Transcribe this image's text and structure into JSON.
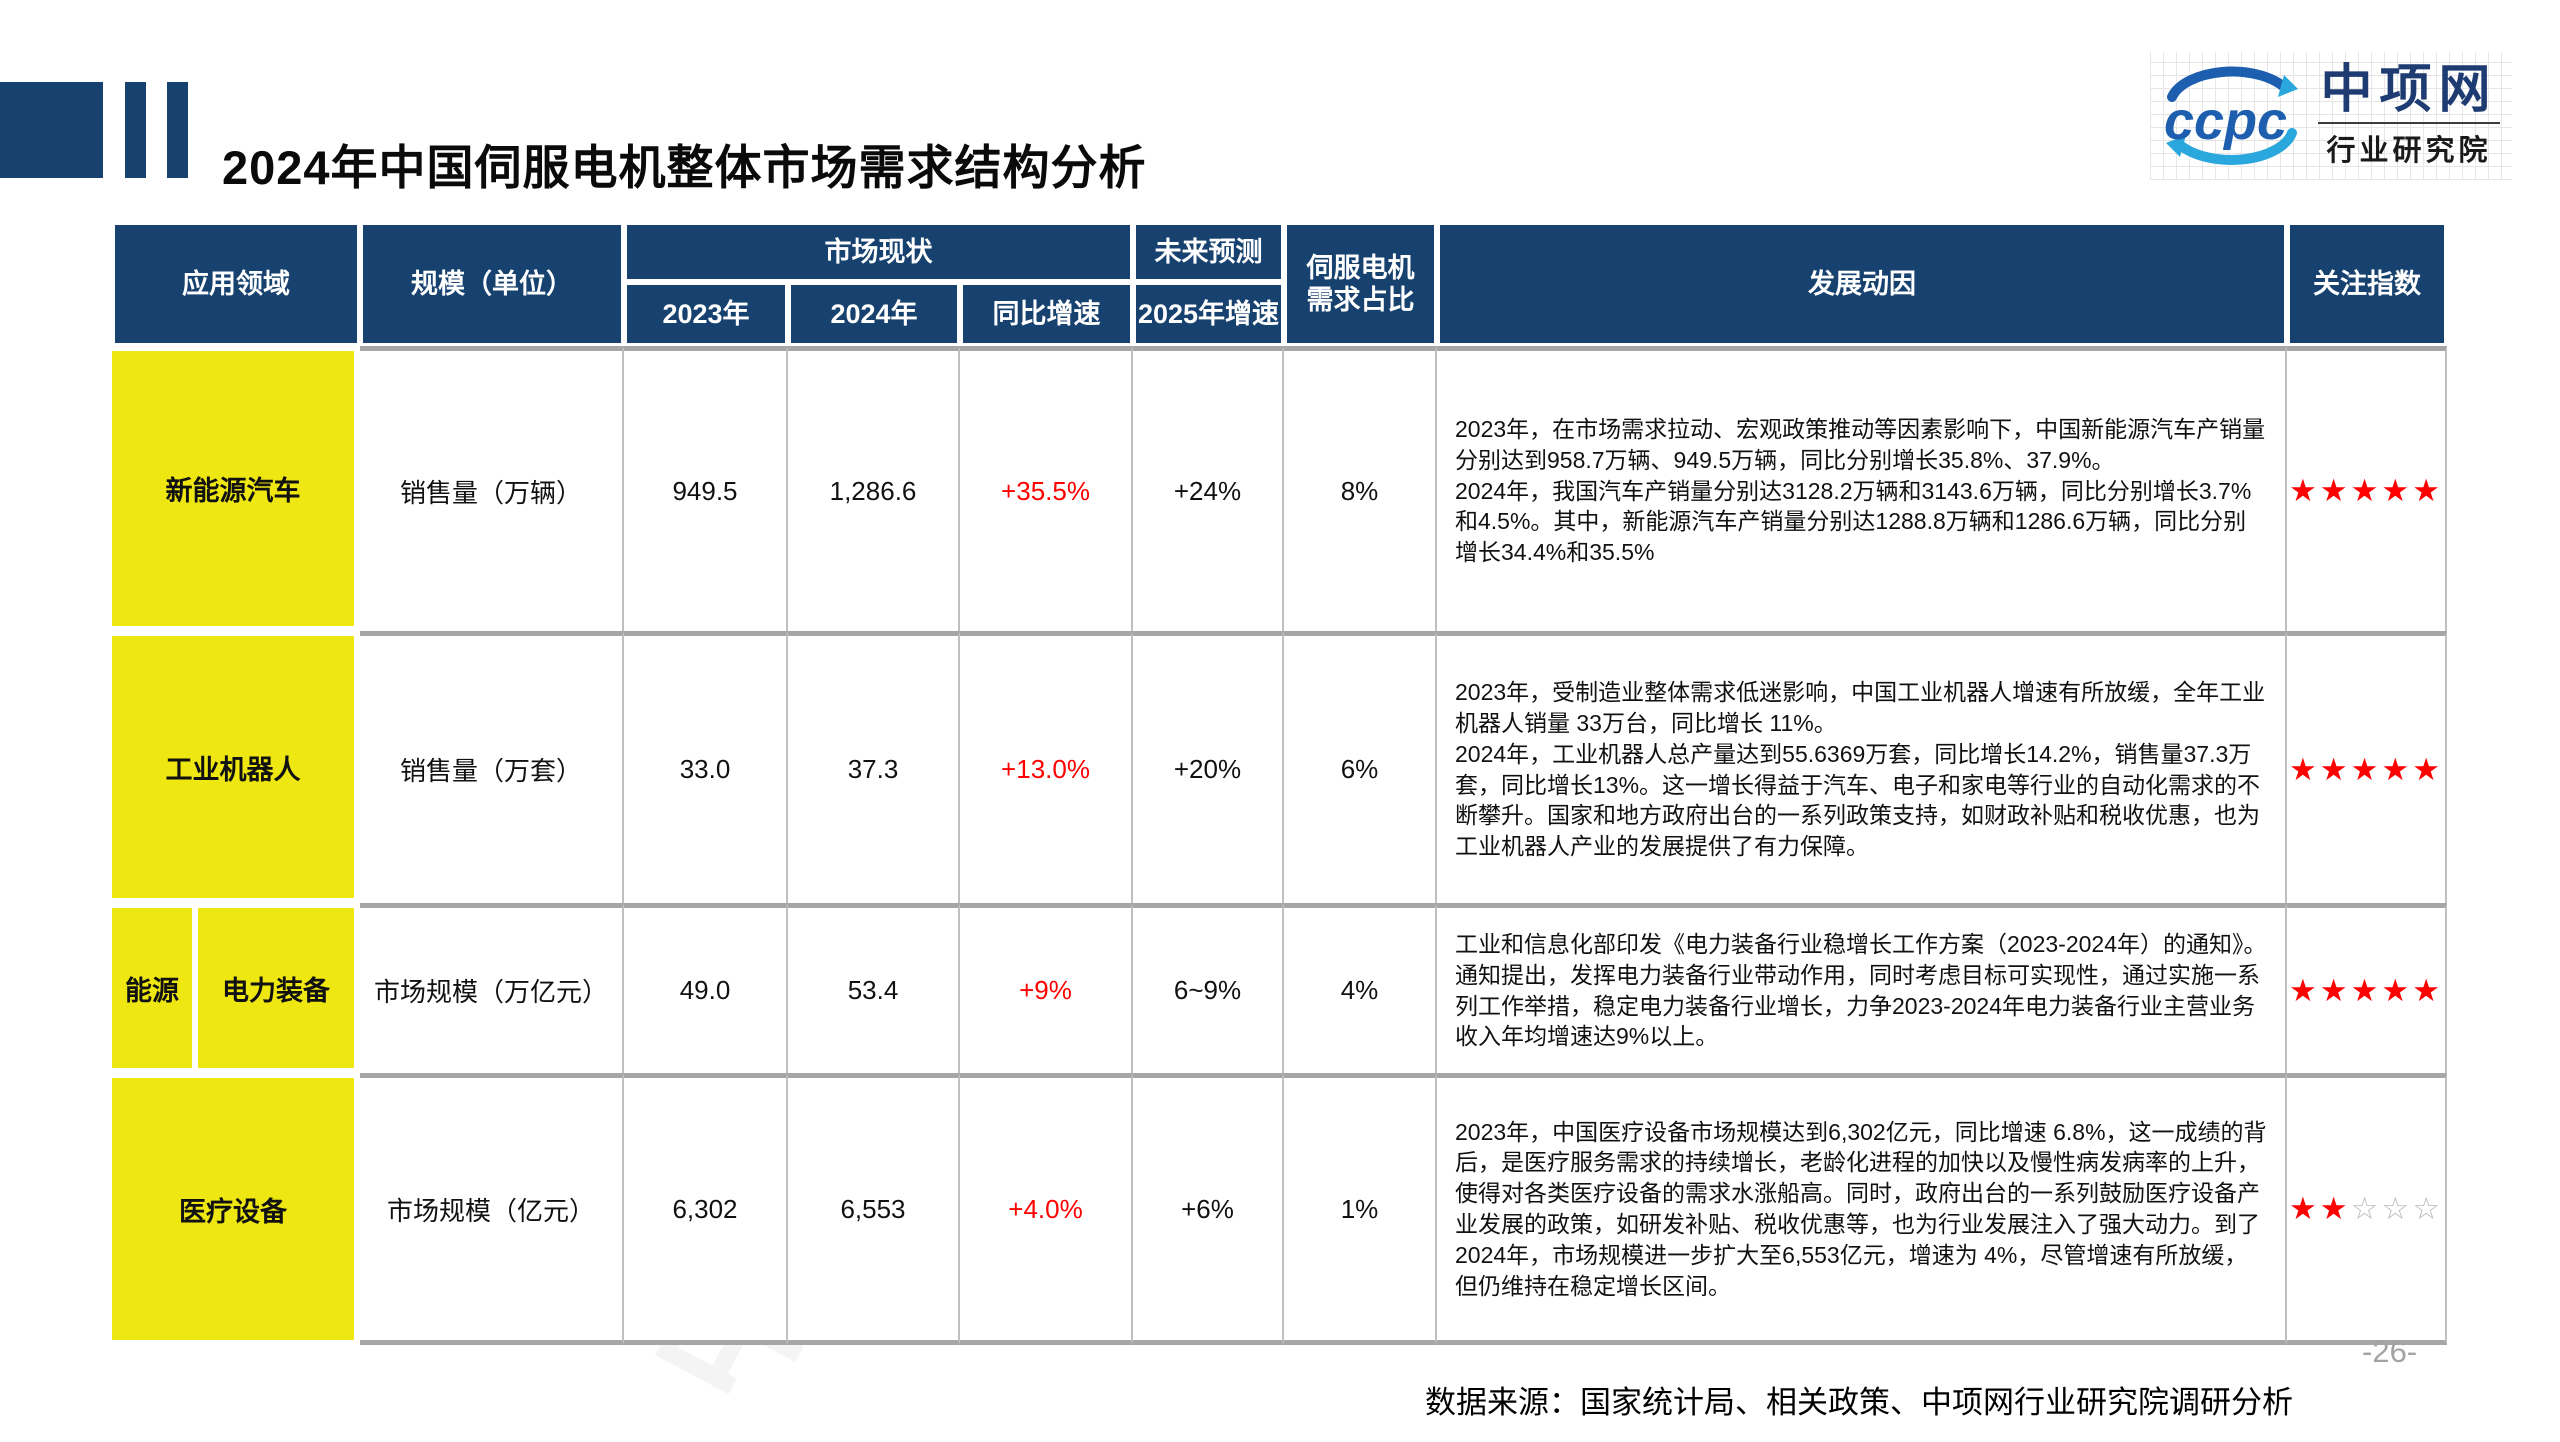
{
  "page": {
    "title": "2024年中国伺服电机整体市场需求结构分析",
    "page_number": "-26-",
    "source_note": "数据来源：国家统计局、相关政策、中项网行业研究院调研分析",
    "watermark": "中项网行研院"
  },
  "logo": {
    "acronym": "ccpc",
    "name": "中项网",
    "subtitle": "行业研究院"
  },
  "colors": {
    "navy": "#17426F",
    "yellow": "#EFE711",
    "red": "#FF0000",
    "row_line": "#A6A6A6",
    "col_line": "#C0C0C0",
    "star_empty": "#BBBBBB",
    "logo_blue": "#1D5FAE",
    "logo_lightblue": "#2AA7DD"
  },
  "table": {
    "headers": {
      "application": "应用领域",
      "scale": "规模（单位）",
      "market_status": "市场现状",
      "y2023": "2023年",
      "y2024": "2024年",
      "yoy": "同比增速",
      "forecast": "未来预测",
      "growth2025": "2025年增速",
      "servo_share": "伺服电机需求占比",
      "driver": "发展动因",
      "attention": "关注指数"
    },
    "rows": [
      {
        "category": "新能源汽车",
        "scale": "销售量（万辆）",
        "v2023": "949.5",
        "v2024": "1,286.6",
        "yoy": "+35.5%",
        "g2025": "+24%",
        "share": "8%",
        "driver": "2023年，在市场需求拉动、宏观政策推动等因素影响下，中国新能源汽车产销量分别达到958.7万辆、949.5万辆，同比分别增长35.8%、37.9%。\n2024年，我国汽车产销量分别达3128.2万辆和3143.6万辆，同比分别增长3.7%和4.5%。其中，新能源汽车产销量分别达1288.8万辆和1286.6万辆，同比分别增长34.4%和35.5%",
        "stars": {
          "filled": 5,
          "total": 5
        }
      },
      {
        "category": "工业机器人",
        "scale": "销售量（万套）",
        "v2023": "33.0",
        "v2024": "37.3",
        "yoy": "+13.0%",
        "g2025": "+20%",
        "share": "6%",
        "driver": "2023年，受制造业整体需求低迷影响，中国工业机器人增速有所放缓，全年工业机器人销量 33万台，同比增长 11%。\n2024年，工业机器人总产量达到55.6369万套，同比增长14.2%，销售量37.3万套，同比增长13%。这一增长得益于汽车、电子和家电等行业的自动化需求的不断攀升。国家和地方政府出台的一系列政策支持，如财政补贴和税收优惠，也为工业机器人产业的发展提供了有力保障。",
        "stars": {
          "filled": 5,
          "total": 5
        }
      },
      {
        "prefix": "能源",
        "category": "电力装备",
        "scale": "市场规模（万亿元）",
        "v2023": "49.0",
        "v2024": "53.4",
        "yoy": "+9%",
        "g2025": "6~9%",
        "share": "4%",
        "driver": "工业和信息化部印发《电力装备行业稳增长工作方案（2023-2024年）的通知》。通知提出，发挥电力装备行业带动作用，同时考虑目标可实现性，通过实施一系列工作举措，稳定电力装备行业增长，力争2023-2024年电力装备行业主营业务收入年均增速达9%以上。",
        "stars": {
          "filled": 5,
          "total": 5
        }
      },
      {
        "category": "医疗设备",
        "scale": "市场规模（亿元）",
        "v2023": "6,302",
        "v2024": "6,553",
        "yoy": "+4.0%",
        "g2025": "+6%",
        "share": "1%",
        "driver": "2023年，中国医疗设备市场规模达到6,302亿元，同比增速 6.8%，这一成绩的背后，是医疗服务需求的持续增长，老龄化进程的加快以及慢性病发病率的上升，使得对各类医疗设备的需求水涨船高。同时，政府出台的一系列鼓励医疗设备产业发展的政策，如研发补贴、税收优惠等，也为行业发展注入了强大动力。到了2024年，市场规模进一步扩大至6,553亿元，增速为 4%，尽管增速有所放缓，但仍维持在稳定增长区间。",
        "stars": {
          "filled": 2,
          "total": 5
        }
      }
    ]
  }
}
